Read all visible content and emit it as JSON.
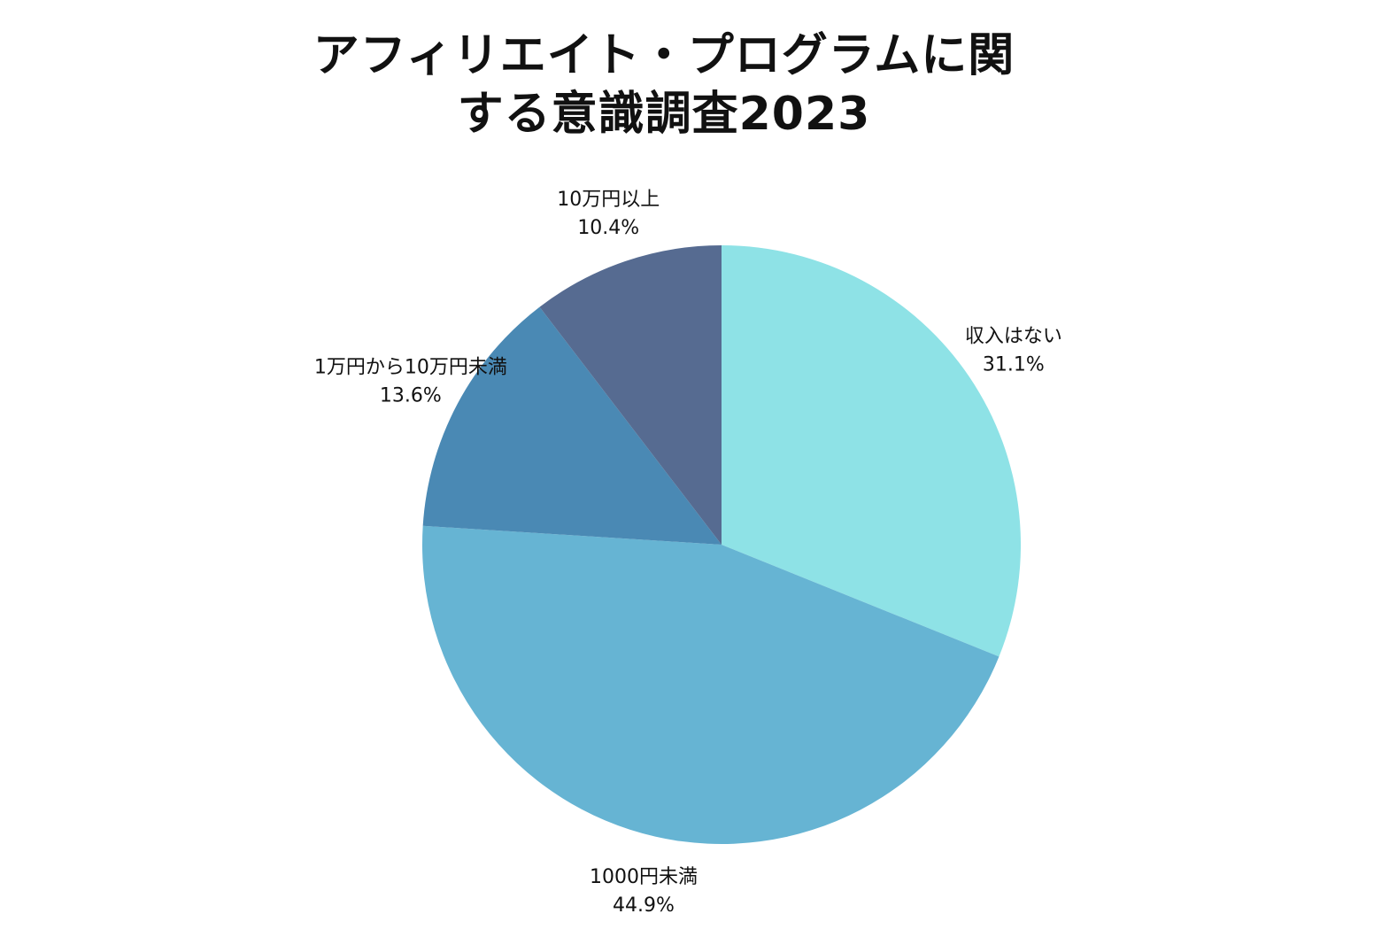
{
  "chart_data": {
    "type": "pie",
    "title_lines": [
      "アフィリエイト・プログラムに関",
      "する意識調査2023"
    ],
    "slices": [
      {
        "label": "収入はない",
        "value": 31.1,
        "value_label": "31.1%",
        "color": "#8ee2e6"
      },
      {
        "label": "1000円未満",
        "value": 44.9,
        "value_label": "44.9%",
        "color": "#66b4d3"
      },
      {
        "label": "1万円から10万円未満",
        "value": 13.6,
        "value_label": "13.6%",
        "color": "#4a89b4"
      },
      {
        "label": "10万円以上",
        "value": 10.4,
        "value_label": "10.4%",
        "color": "#566b91"
      }
    ],
    "start_angle": "12 o'clock",
    "direction": "clockwise"
  }
}
